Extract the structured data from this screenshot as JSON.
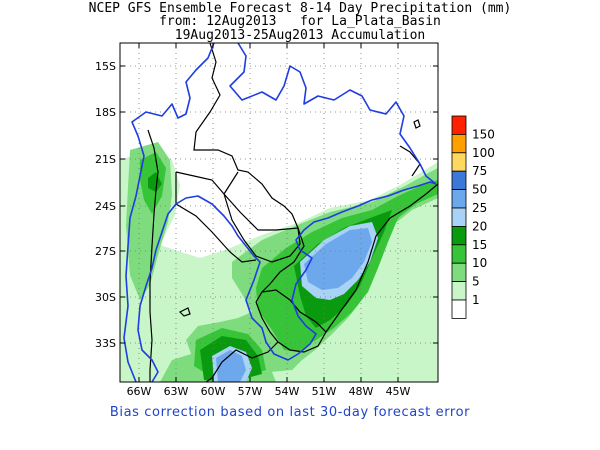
{
  "title": {
    "line1": "NCEP GFS Ensemble Forecast 8-14 Day Precipitation (mm)",
    "line2": "from: 12Aug2013   for La_Plata_Basin",
    "line3": "19Aug2013-25Aug2013 Accumulation"
  },
  "axes": {
    "y_ticks": [
      "15S",
      "18S",
      "21S",
      "24S",
      "27S",
      "30S",
      "33S"
    ],
    "x_ticks": [
      "66W",
      "63W",
      "60W",
      "57W",
      "54W",
      "51W",
      "48W",
      "45W"
    ]
  },
  "legend": {
    "items": [
      {
        "label": "150",
        "color": "#ff2000"
      },
      {
        "label": "100",
        "color": "#ffa000"
      },
      {
        "label": "75",
        "color": "#ffd860"
      },
      {
        "label": "50",
        "color": "#3c78d8"
      },
      {
        "label": "25",
        "color": "#6ea8ec"
      },
      {
        "label": "20",
        "color": "#a8d2f6"
      },
      {
        "label": "15",
        "color": "#0a9a10"
      },
      {
        "label": "10",
        "color": "#38c438"
      },
      {
        "label": "5",
        "color": "#7edc7e"
      },
      {
        "label": "1",
        "color": "#c8f6c8"
      }
    ]
  },
  "colors": {
    "basin_outline": "#1f3de0",
    "borders": "#000000",
    "grid": "#777777",
    "footer_text": "#1f44c8"
  },
  "footer": "Bias correction based on last 30-day forecast error"
}
